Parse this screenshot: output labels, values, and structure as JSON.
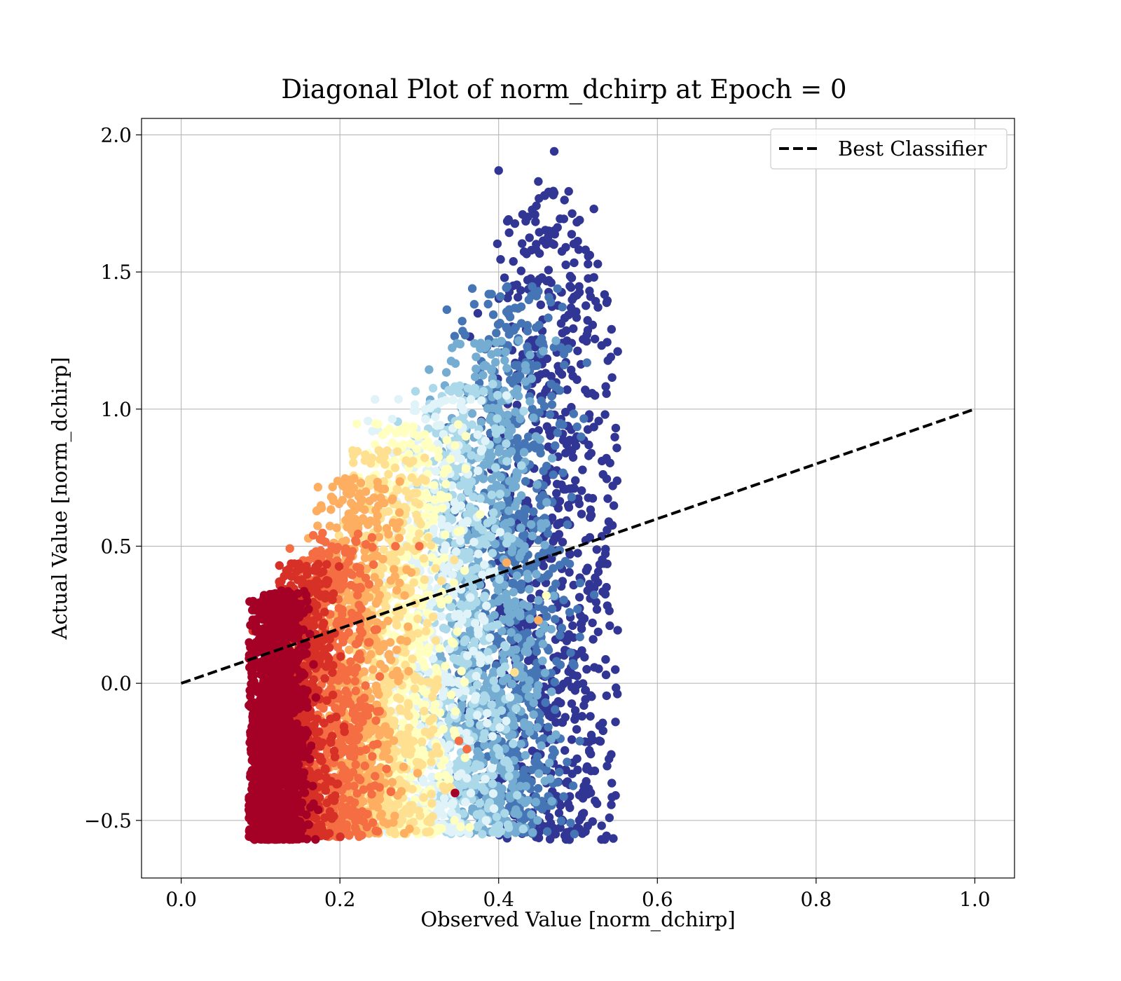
{
  "chart_data": {
    "type": "scatter",
    "title": "Diagonal Plot of norm_dchirp at Epoch = 0",
    "xlabel": "Observed Value [norm_dchirp]",
    "ylabel": "Actual Value [norm_dchirp]",
    "xlim": [
      -0.05,
      1.05
    ],
    "ylim": [
      -0.71,
      2.06
    ],
    "x_ticks": [
      0.0,
      0.2,
      0.4,
      0.6,
      0.8,
      1.0
    ],
    "x_tick_labels": [
      "0.0",
      "0.2",
      "0.4",
      "0.6",
      "0.8",
      "1.0"
    ],
    "y_ticks": [
      -0.5,
      0.0,
      0.5,
      1.0,
      1.5,
      2.0
    ],
    "y_tick_labels": [
      "−0.5",
      "0.0",
      "0.5",
      "1.0",
      "1.5",
      "2.0"
    ],
    "grid": true,
    "legend_position": "top-right",
    "series": [
      {
        "name": "Best Classifier",
        "kind": "line",
        "style": "dashed",
        "color": "#000000",
        "x": [
          0.0,
          1.0
        ],
        "y": [
          0.0,
          1.0
        ]
      }
    ],
    "scatter_color_scale": [
      "#a50026",
      "#d73027",
      "#f46d43",
      "#fdae61",
      "#fee090",
      "#ffffbf",
      "#e0f3f8",
      "#abd9e9",
      "#74add1",
      "#4575b4",
      "#313695"
    ],
    "scatter_clusters": [
      {
        "band": 0,
        "x_center": 0.12,
        "x_spread": 0.018,
        "y_range": [
          -0.57,
          0.34
        ],
        "color": "#a50026"
      },
      {
        "band": 1,
        "x_center": 0.15,
        "x_spread": 0.022,
        "y_range": [
          -0.56,
          0.44
        ],
        "color": "#d73027"
      },
      {
        "band": 2,
        "x_center": 0.19,
        "x_spread": 0.025,
        "y_range": [
          -0.56,
          0.55
        ],
        "color": "#f46d43"
      },
      {
        "band": 3,
        "x_center": 0.22,
        "x_spread": 0.028,
        "y_range": [
          -0.55,
          0.75
        ],
        "color": "#fdae61"
      },
      {
        "band": 4,
        "x_center": 0.26,
        "x_spread": 0.03,
        "y_range": [
          -0.55,
          0.85
        ],
        "color": "#fee090"
      },
      {
        "band": 5,
        "x_center": 0.29,
        "x_spread": 0.03,
        "y_range": [
          -0.55,
          0.95
        ],
        "color": "#ffffbf"
      },
      {
        "band": 6,
        "x_center": 0.32,
        "x_spread": 0.032,
        "y_range": [
          -0.55,
          1.05
        ],
        "color": "#e0f3f8"
      },
      {
        "band": 7,
        "x_center": 0.35,
        "x_spread": 0.032,
        "y_range": [
          -0.55,
          1.1
        ],
        "color": "#abd9e9"
      },
      {
        "band": 8,
        "x_center": 0.39,
        "x_spread": 0.034,
        "y_range": [
          -0.55,
          1.25
        ],
        "color": "#74add1"
      },
      {
        "band": 9,
        "x_center": 0.42,
        "x_spread": 0.035,
        "y_range": [
          -0.55,
          1.45
        ],
        "color": "#4575b4"
      },
      {
        "band": 10,
        "x_center": 0.47,
        "x_spread": 0.04,
        "y_range": [
          -0.57,
          1.94
        ],
        "color": "#313695"
      }
    ]
  }
}
